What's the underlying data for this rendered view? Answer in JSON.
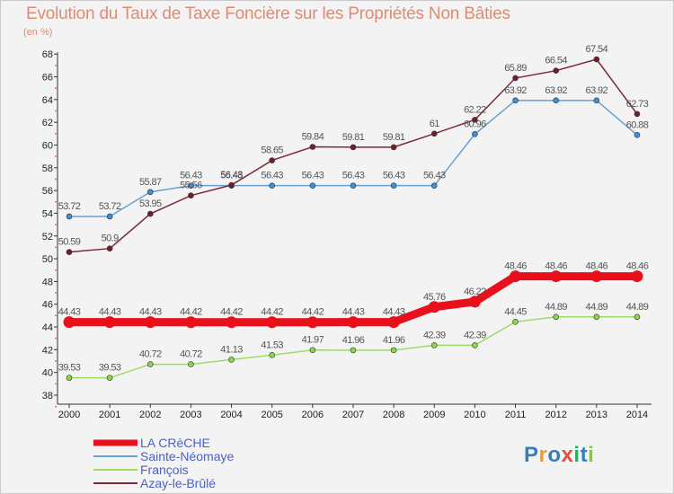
{
  "header": {
    "title": "Evolution du Taux de Taxe Foncière sur les Propriétés Non Bâties",
    "subtitle": "(en %)"
  },
  "logo": {
    "text": "Proxiti",
    "letters": [
      "P",
      "r",
      "o",
      "x",
      "i",
      "t",
      "i"
    ],
    "colors": [
      "#2f7fc2",
      "#f39c1e",
      "#2f7fc2",
      "#e74c3c",
      "#27ae60",
      "#2f7fc2",
      "#8bc34a"
    ]
  },
  "chart_data": {
    "type": "line",
    "title": "Evolution du Taux de Taxe Foncière sur les Propriétés Non Bâties",
    "ylabel": "(en %)",
    "x": [
      "2000",
      "2001",
      "2002",
      "2003",
      "2004",
      "2005",
      "2006",
      "2007",
      "2008",
      "2009",
      "2010",
      "2011",
      "2012",
      "2013",
      "2014"
    ],
    "ylim": [
      37,
      68
    ],
    "yticks": [
      38,
      40,
      42,
      44,
      46,
      48,
      50,
      52,
      54,
      56,
      58,
      60,
      62,
      64,
      66,
      68
    ],
    "grid": false,
    "legend_position": "bottom-left",
    "series": [
      {
        "name": "LA CRèCHE",
        "color": "#e8101a",
        "bold": true,
        "values": [
          44.43,
          44.43,
          44.43,
          44.42,
          44.42,
          44.42,
          44.42,
          44.43,
          44.43,
          45.76,
          46.22,
          48.46,
          48.46,
          48.46,
          48.46
        ],
        "labels": [
          "44.43",
          "44.43",
          "44.43",
          "44.42",
          "44.42",
          "44.42",
          "44.42",
          "44.43",
          "44.43",
          "45.76",
          "46.22",
          "48.46",
          "48.46",
          "48.46",
          "48.46"
        ]
      },
      {
        "name": "Sainte-Néomaye",
        "color": "#6aa0cf",
        "marker": "#3f8fd1",
        "values": [
          53.72,
          53.72,
          55.87,
          56.43,
          56.43,
          56.43,
          56.43,
          56.43,
          56.43,
          56.43,
          60.96,
          63.92,
          63.92,
          63.92,
          60.88
        ],
        "labels": [
          "53.72",
          "53.72",
          "55.87",
          "56.43",
          "56.43",
          "56.43",
          "56.43",
          "56.43",
          "56.43",
          "56.43",
          "60.96",
          "63.92",
          "63.92",
          "63.92",
          "60.88"
        ]
      },
      {
        "name": "François",
        "color": "#9ddb63",
        "marker": "#8ad64b",
        "values": [
          39.53,
          39.53,
          40.72,
          40.72,
          41.13,
          41.53,
          41.97,
          41.96,
          41.96,
          42.39,
          42.39,
          44.45,
          44.89,
          44.89,
          44.89
        ],
        "labels": [
          "39.53",
          "39.53",
          "40.72",
          "40.72",
          "41.13",
          "41.53",
          "41.97",
          "41.96",
          "41.96",
          "42.39",
          "42.39",
          "44.45",
          "44.89",
          "44.89",
          "44.89"
        ]
      },
      {
        "name": "Azay-le-Brûlé",
        "color": "#7b2a36",
        "marker": "#6e1f2b",
        "values": [
          50.59,
          50.9,
          53.95,
          55.56,
          56.48,
          58.65,
          59.84,
          59.81,
          59.81,
          61,
          62.22,
          65.89,
          66.54,
          67.54,
          62.73
        ],
        "labels": [
          "50.59",
          "50.9",
          "53.95",
          "55.56",
          "56.48",
          "58.65",
          "59.84",
          "59.81",
          "59.81",
          "61",
          "62.22",
          "65.89",
          "66.54",
          "67.54",
          "62.73"
        ]
      }
    ]
  }
}
